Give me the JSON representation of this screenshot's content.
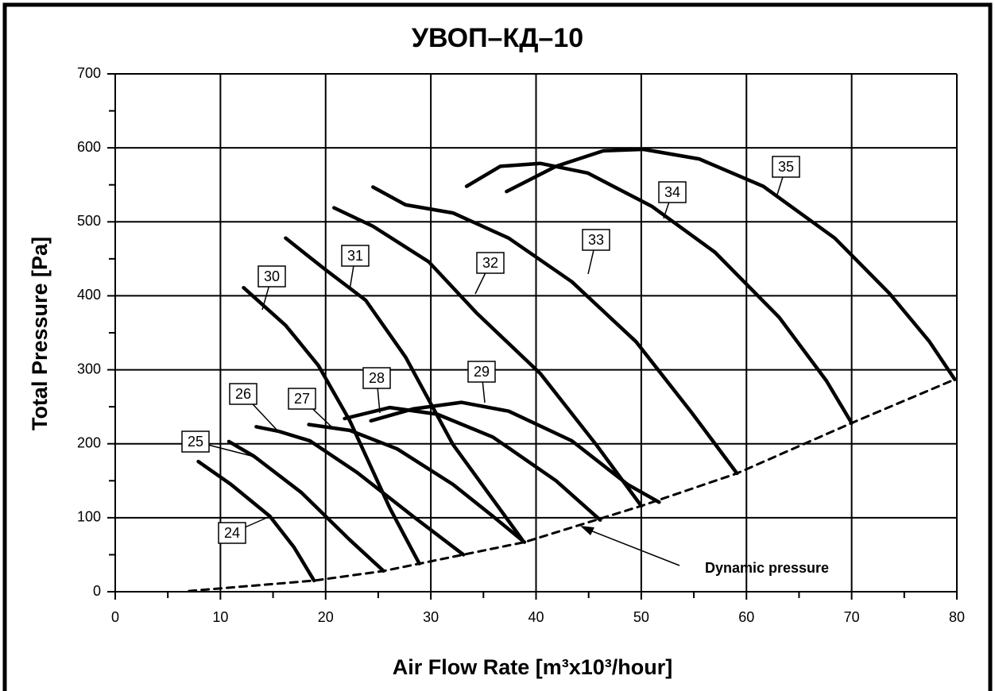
{
  "chart_data": {
    "type": "line",
    "title": "УВОП–КД–10",
    "xlabel": "Air Flow Rate [m³x10³/hour]",
    "ylabel": "Total Pressure [Pa]",
    "xlim": [
      0,
      80
    ],
    "ylim": [
      0,
      700
    ],
    "xticks": [
      0,
      10,
      20,
      30,
      40,
      50,
      60,
      70,
      80
    ],
    "yticks": [
      0,
      100,
      200,
      300,
      400,
      500,
      600,
      700
    ],
    "xminorticks": [
      5,
      15,
      25,
      35,
      45,
      55,
      65,
      75
    ],
    "yminorticks": [
      50,
      150,
      250,
      350,
      450,
      550,
      650
    ],
    "grid": true,
    "series": [
      {
        "name": "24",
        "color": "#000000",
        "x": [
          7.9,
          11,
          14.7,
          17,
          18.9
        ],
        "values": [
          176,
          145,
          102,
          60,
          15
        ]
      },
      {
        "name": "25",
        "color": "#000000",
        "x": [
          10.8,
          13.2,
          17.7,
          22.3,
          25.5
        ],
        "values": [
          203,
          183,
          134,
          70,
          28
        ]
      },
      {
        "name": "26",
        "color": "#000000",
        "x": [
          13.4,
          15.5,
          18.5,
          23.0,
          28.3,
          33.1
        ],
        "values": [
          223,
          217,
          204,
          161,
          102,
          50
        ]
      },
      {
        "name": "27",
        "color": "#000000",
        "x": [
          18.4,
          22.3,
          26.8,
          32.1,
          35.9,
          38.9
        ],
        "values": [
          226,
          218,
          193,
          145,
          102,
          67
        ]
      },
      {
        "name": "28",
        "color": "#000000",
        "x": [
          21.8,
          26.1,
          30.6,
          35.9,
          41.9,
          46.1
        ],
        "values": [
          234,
          249,
          240,
          209,
          150,
          97
        ]
      },
      {
        "name": "29",
        "color": "#000000",
        "x": [
          24.3,
          28.3,
          32.9,
          37.4,
          43.4,
          48.7,
          51.7
        ],
        "values": [
          231,
          247,
          256,
          244,
          204,
          145,
          121
        ]
      },
      {
        "name": "30",
        "color": "#000000",
        "x": [
          12.2,
          16.2,
          19.3,
          22.3,
          26.1,
          28.9
        ],
        "values": [
          411,
          360,
          306,
          231,
          113,
          38
        ]
      },
      {
        "name": "31",
        "color": "#000000",
        "x": [
          16.2,
          20.0,
          23.8,
          27.6,
          32.1,
          38.7
        ],
        "values": [
          478,
          435,
          394,
          317,
          199,
          70
        ]
      },
      {
        "name": "32",
        "color": "#000000",
        "x": [
          20.8,
          24.5,
          29.8,
          34.4,
          40.4,
          45.7,
          50.0
        ],
        "values": [
          519,
          494,
          446,
          376,
          295,
          199,
          116
        ]
      },
      {
        "name": "33",
        "color": "#000000",
        "x": [
          24.5,
          27.6,
          32.1,
          37.4,
          43.4,
          49.5,
          54.8,
          59.1
        ],
        "values": [
          547,
          523,
          512,
          478,
          419,
          338,
          242,
          160
        ]
      },
      {
        "name": "34",
        "color": "#000000",
        "x": [
          33.4,
          36.6,
          40.4,
          44.9,
          51.0,
          57.0,
          63.1,
          67.6,
          70.0
        ],
        "values": [
          548,
          575,
          579,
          566,
          521,
          459,
          371,
          285,
          228
        ]
      },
      {
        "name": "35",
        "color": "#000000",
        "x": [
          37.2,
          41.9,
          46.4,
          50.2,
          55.5,
          61.6,
          68.4,
          73.6,
          77.4,
          79.8
        ],
        "values": [
          541,
          575,
          596,
          598,
          585,
          548,
          478,
          403,
          338,
          287
        ]
      },
      {
        "name": "Dynamic pressure",
        "color": "#000000",
        "dashed": true,
        "x": [
          7.0,
          18.9,
          25.5,
          38.9,
          50.0,
          59.1,
          70.0,
          79.8
        ],
        "values": [
          1,
          15,
          28,
          67,
          116,
          160,
          228,
          287
        ]
      }
    ]
  }
}
